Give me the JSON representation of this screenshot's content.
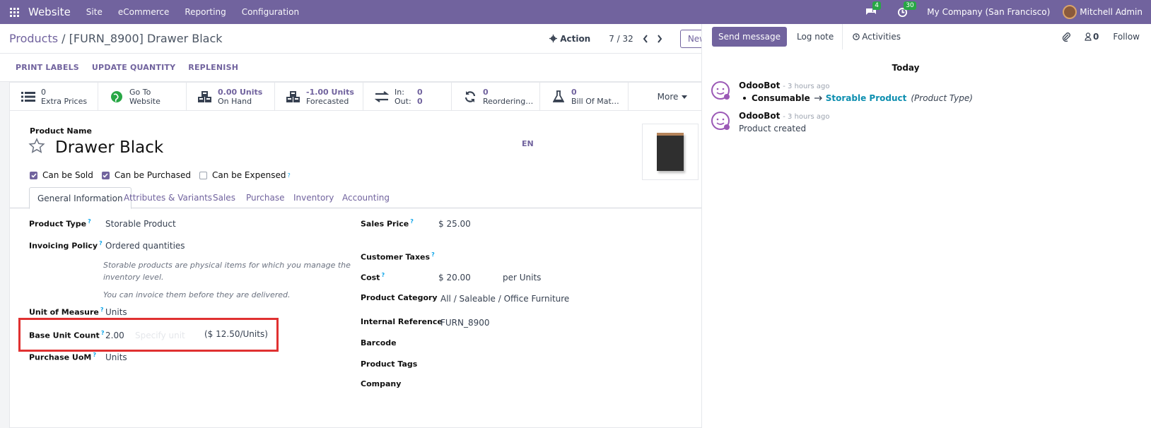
{
  "navbar": {
    "brand": "Website",
    "menus": [
      "Site",
      "eCommerce",
      "Reporting",
      "Configuration"
    ],
    "messages_count": "4",
    "activities_count": "30",
    "company": "My Company (San Francisco)",
    "user": "Mitchell Admin"
  },
  "control": {
    "breadcrumb_root": "Products",
    "breadcrumb_sep": " / ",
    "breadcrumb_current": "[FURN_8900] Drawer Black",
    "action_label": "Action",
    "pager": "7 / 32",
    "new_label": "New"
  },
  "statusbar": {
    "buttons": [
      "PRINT LABELS",
      "UPDATE QUANTITY",
      "REPLENISH"
    ]
  },
  "smart_buttons": {
    "extra_prices_value": "0",
    "extra_prices_label": "Extra Prices",
    "website_line1": "Go To",
    "website_line2": "Website",
    "on_hand_value": "0.00 Units",
    "on_hand_label": "On Hand",
    "forecasted_value": "-1.00 Units",
    "forecasted_label": "Forecasted",
    "in_label": "In:",
    "in_value": "0",
    "out_label": "Out:",
    "out_value": "0",
    "reordering_value": "0",
    "reordering_label": "Reordering…",
    "bom_value": "0",
    "bom_label": "Bill Of Mat…",
    "more_label": "More"
  },
  "product": {
    "name_label": "Product Name",
    "name": "Drawer Black",
    "lang": "EN",
    "can_be_sold": "Can be Sold",
    "can_be_purchased": "Can be Purchased",
    "can_be_expensed": "Can be Expensed",
    "help_mark": "?"
  },
  "tabs": [
    "General Information",
    "Attributes & Variants",
    "Sales",
    "Purchase",
    "Inventory",
    "Accounting"
  ],
  "general": {
    "product_type_label": "Product Type",
    "product_type": "Storable Product",
    "invoicing_policy_label": "Invoicing Policy",
    "invoicing_policy": "Ordered quantities",
    "help_line1": "Storable products are physical items for which you manage the",
    "help_line2": "inventory level.",
    "help_line3": "You can invoice them before they are delivered.",
    "uom_label": "Unit of Measure",
    "uom": "Units",
    "base_unit_count_label": "Base Unit Count",
    "base_unit_count": "2.00",
    "specify_unit_placeholder": "Specify unit",
    "unit_price": "($ 12.50/Units)",
    "purchase_uom_label": "Purchase UoM",
    "purchase_uom": "Units",
    "sales_price_label": "Sales Price",
    "sales_price": "$ 25.00",
    "customer_taxes_label": "Customer Taxes",
    "cost_label": "Cost",
    "cost": "$ 20.00",
    "cost_unit": "per Units",
    "category_label": "Product Category",
    "category": "All / Saleable / Office Furniture",
    "internal_ref_label": "Internal Reference",
    "internal_ref": "FURN_8900",
    "barcode_label": "Barcode",
    "tags_label": "Product Tags",
    "company_label": "Company"
  },
  "chatter": {
    "send_message": "Send message",
    "log_note": "Log note",
    "activities": "Activities",
    "followers_count": "0",
    "follow": "Follow",
    "date_separator": "Today",
    "messages": [
      {
        "author": "OdooBot",
        "time": "- 3 hours ago",
        "old_value": "Consumable",
        "new_value": "Storable Product",
        "field": "(Product Type)"
      },
      {
        "author": "OdooBot",
        "time": "- 3 hours ago",
        "body": "Product created"
      }
    ]
  },
  "colors": {
    "brand": "#71639e",
    "badge": "#28a745",
    "highlight": "#e03131"
  }
}
